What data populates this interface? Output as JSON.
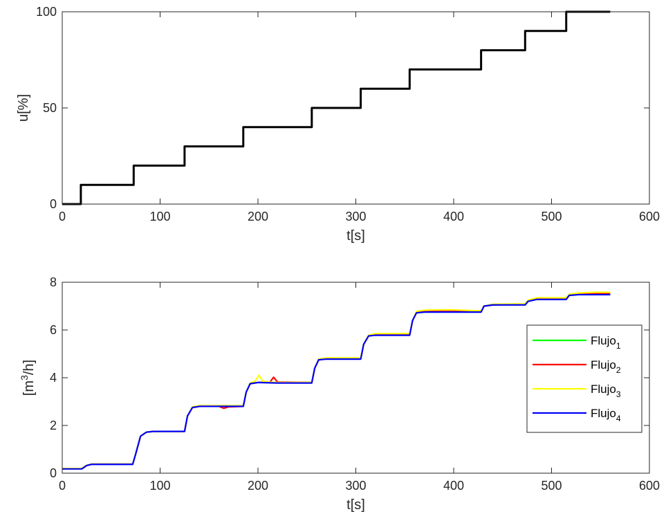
{
  "chart_data": [
    {
      "type": "line",
      "title": "",
      "xlabel": "t[s]",
      "ylabel": "u[%]",
      "xlim": [
        0,
        600
      ],
      "ylim": [
        0,
        100
      ],
      "xticks": [
        0,
        100,
        200,
        300,
        400,
        500,
        600
      ],
      "yticks": [
        0,
        50,
        100
      ],
      "grid": false,
      "legend": "none",
      "series": [
        {
          "color": "#000000",
          "interpolation": "step",
          "x": [
            0,
            19,
            73,
            125,
            185,
            255,
            305,
            355,
            428,
            473,
            515,
            560
          ],
          "y": [
            0,
            10,
            20,
            30,
            40,
            50,
            60,
            70,
            80,
            90,
            100,
            100
          ]
        }
      ]
    },
    {
      "type": "line",
      "title": "",
      "xlabel": "t[s]",
      "ylabel": "[m",
      "ylabel_sup": "3",
      "ylabel_tail": "/h]",
      "xlim": [
        0,
        600
      ],
      "ylim": [
        0,
        8
      ],
      "xticks": [
        0,
        100,
        200,
        300,
        400,
        500,
        600
      ],
      "yticks": [
        0,
        2,
        4,
        6,
        8
      ],
      "grid": false,
      "legend": "right",
      "series": [
        {
          "name": "Flujo",
          "sub": "1",
          "color": "#00ff00",
          "x": [
            0,
            20,
            25,
            30,
            72,
            75,
            80,
            86,
            93,
            125,
            128,
            133,
            140,
            185,
            188,
            192,
            200,
            210,
            220,
            255,
            258,
            262,
            270,
            305,
            308,
            313,
            320,
            355,
            358,
            362,
            370,
            428,
            431,
            440,
            473,
            476,
            485,
            515,
            518,
            528,
            560
          ],
          "y": [
            0.2,
            0.2,
            0.33,
            0.38,
            0.38,
            0.8,
            1.55,
            1.72,
            1.75,
            1.75,
            2.4,
            2.75,
            2.8,
            2.8,
            3.4,
            3.75,
            3.8,
            3.8,
            3.8,
            3.8,
            4.4,
            4.75,
            4.8,
            4.8,
            5.4,
            5.75,
            5.8,
            5.8,
            6.4,
            6.75,
            6.78,
            6.78,
            7.0,
            7.05,
            7.08,
            7.2,
            7.3,
            7.32,
            7.45,
            7.5,
            7.5
          ]
        },
        {
          "name": "Flujo",
          "sub": "2",
          "color": "#ff0000",
          "x": [
            0,
            20,
            25,
            30,
            72,
            75,
            80,
            86,
            93,
            125,
            128,
            133,
            140,
            160,
            165,
            170,
            185,
            188,
            192,
            200,
            212,
            216,
            220,
            255,
            258,
            262,
            270,
            305,
            308,
            313,
            320,
            355,
            358,
            362,
            370,
            428,
            431,
            440,
            473,
            476,
            485,
            515,
            518,
            528,
            560
          ],
          "y": [
            0.2,
            0.2,
            0.33,
            0.38,
            0.38,
            0.8,
            1.55,
            1.72,
            1.75,
            1.75,
            2.4,
            2.75,
            2.8,
            2.8,
            2.72,
            2.78,
            2.8,
            3.4,
            3.75,
            3.8,
            3.8,
            4.02,
            3.82,
            3.8,
            4.4,
            4.75,
            4.8,
            4.8,
            5.4,
            5.75,
            5.8,
            5.8,
            6.4,
            6.75,
            6.78,
            6.78,
            7.0,
            7.05,
            7.08,
            7.2,
            7.3,
            7.32,
            7.45,
            7.52,
            7.52
          ]
        },
        {
          "name": "Flujo",
          "sub": "3",
          "color": "#ffff00",
          "x": [
            0,
            20,
            25,
            30,
            72,
            75,
            80,
            86,
            93,
            125,
            128,
            133,
            140,
            185,
            188,
            192,
            197,
            201,
            205,
            212,
            220,
            255,
            258,
            262,
            270,
            305,
            308,
            313,
            320,
            355,
            358,
            362,
            370,
            395,
            428,
            431,
            440,
            473,
            476,
            485,
            515,
            518,
            528,
            545,
            560
          ],
          "y": [
            0.2,
            0.2,
            0.33,
            0.38,
            0.38,
            0.8,
            1.55,
            1.72,
            1.75,
            1.75,
            2.4,
            2.78,
            2.83,
            2.83,
            3.4,
            3.78,
            3.85,
            4.1,
            3.85,
            3.82,
            3.8,
            3.8,
            4.4,
            4.78,
            4.83,
            4.83,
            5.4,
            5.78,
            5.85,
            5.85,
            6.4,
            6.78,
            6.83,
            6.85,
            6.8,
            7.0,
            7.08,
            7.1,
            7.25,
            7.35,
            7.35,
            7.5,
            7.55,
            7.58,
            7.58
          ]
        },
        {
          "name": "Flujo",
          "sub": "4",
          "color": "#0000ff",
          "x": [
            0,
            20,
            25,
            30,
            72,
            75,
            80,
            86,
            93,
            125,
            128,
            133,
            140,
            185,
            188,
            192,
            200,
            220,
            255,
            258,
            262,
            270,
            305,
            308,
            313,
            320,
            355,
            358,
            362,
            370,
            428,
            431,
            440,
            473,
            476,
            485,
            515,
            518,
            528,
            560
          ],
          "y": [
            0.18,
            0.18,
            0.32,
            0.37,
            0.37,
            0.8,
            1.55,
            1.72,
            1.75,
            1.75,
            2.4,
            2.75,
            2.8,
            2.8,
            3.4,
            3.75,
            3.8,
            3.78,
            3.78,
            4.4,
            4.75,
            4.78,
            4.78,
            5.4,
            5.75,
            5.78,
            5.78,
            6.4,
            6.72,
            6.75,
            6.75,
            7.0,
            7.05,
            7.05,
            7.2,
            7.28,
            7.28,
            7.45,
            7.48,
            7.48
          ]
        }
      ]
    }
  ]
}
